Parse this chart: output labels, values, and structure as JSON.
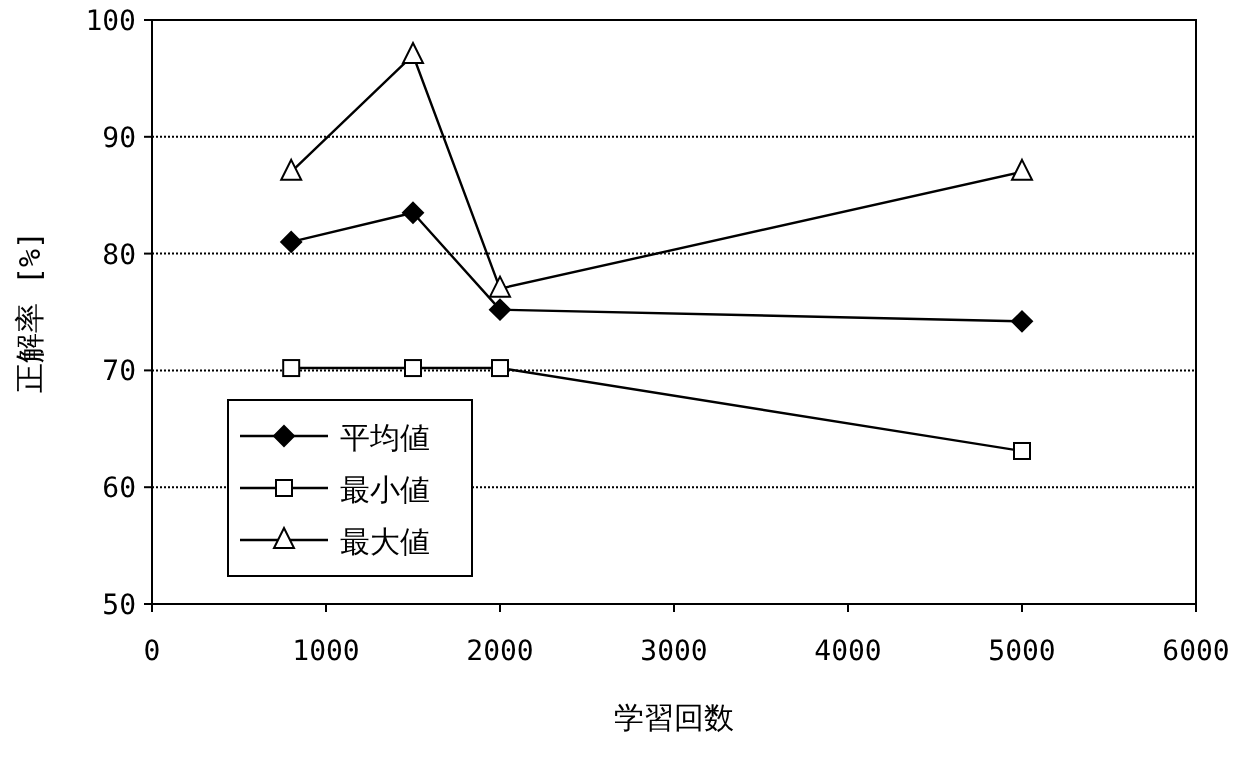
{
  "chart_data": {
    "type": "line",
    "xlabel": "学習回数",
    "ylabel": "正解率 [%]",
    "xlim": [
      0,
      6000
    ],
    "xticks": [
      0,
      1000,
      2000,
      3000,
      4000,
      5000,
      6000
    ],
    "ylim": [
      50,
      100
    ],
    "yticks": [
      50,
      60,
      70,
      80,
      90,
      100
    ],
    "grid": "y",
    "legend": "bottom left",
    "line_style": "solid",
    "series": [
      {
        "name": "平均値",
        "color": "#000000",
        "marker": "diamond",
        "x": [
          800,
          1500,
          2000,
          5000
        ],
        "values": [
          81,
          83.5,
          75.2,
          74.2
        ]
      },
      {
        "name": "最小値",
        "color": "#000000",
        "marker": "square",
        "x": [
          800,
          1500,
          2000,
          5000
        ],
        "values": [
          70.2,
          70.2,
          70.2,
          63.1
        ]
      },
      {
        "name": "最大値",
        "color": "#000000",
        "marker": "triangle",
        "x": [
          800,
          1500,
          2000,
          5000
        ],
        "values": [
          87,
          97,
          77,
          87
        ]
      }
    ]
  }
}
